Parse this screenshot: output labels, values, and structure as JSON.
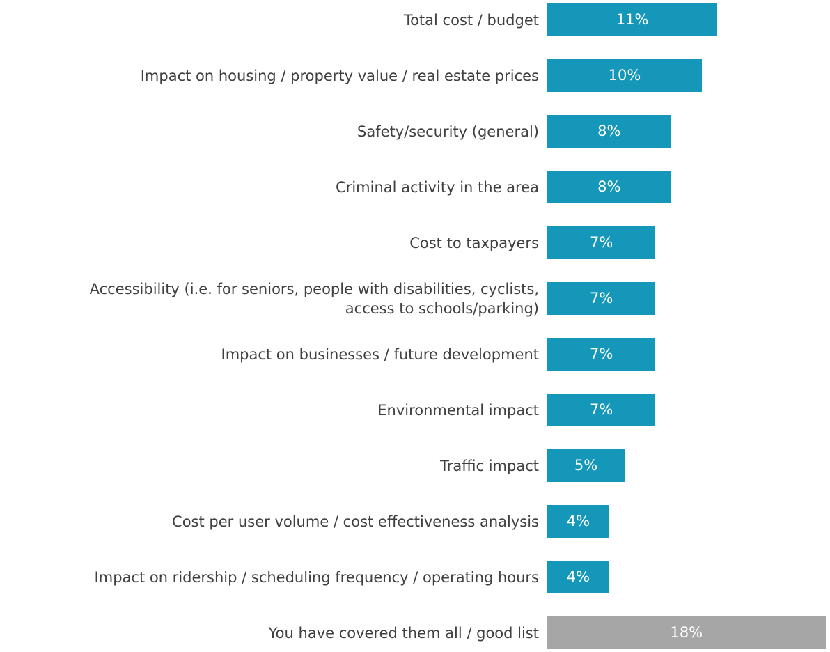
{
  "chart_data": {
    "type": "hbar",
    "categories": [
      "Total cost / budget",
      "Impact on housing / property value / real estate prices",
      "Safety/security (general)",
      "Criminal activity in the area",
      "Cost to taxpayers",
      "Accessibility (i.e. for seniors, people with disabilities, cyclists,\naccess to schools/parking)",
      "Impact on businesses / future development",
      "Environmental impact",
      "Traffic impact",
      "Cost per user volume / cost effectiveness analysis",
      "Impact on ridership / scheduling frequency / operating hours",
      "You have covered them all / good list"
    ],
    "values": [
      11,
      10,
      8,
      8,
      7,
      7,
      7,
      7,
      5,
      4,
      4,
      18
    ],
    "value_labels": [
      "11%",
      "10%",
      "8%",
      "8%",
      "7%",
      "7%",
      "7%",
      "7%",
      "5%",
      "4%",
      "4%",
      "18%"
    ],
    "colors": [
      "#1497b8",
      "#1497b8",
      "#1497b8",
      "#1497b8",
      "#1497b8",
      "#1497b8",
      "#1497b8",
      "#1497b8",
      "#1497b8",
      "#1497b8",
      "#1497b8",
      "#a6a6a6"
    ]
  }
}
